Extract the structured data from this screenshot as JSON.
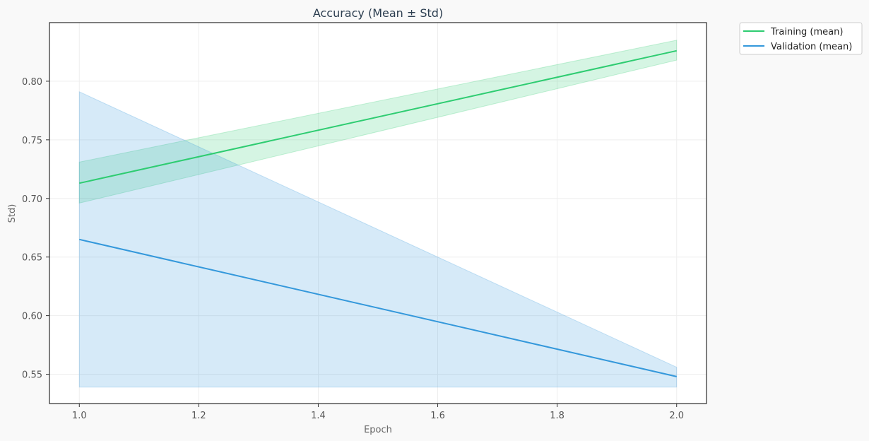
{
  "chart_data": {
    "type": "line",
    "title": "Accuracy (Mean ± Std)",
    "xlabel": "Epoch",
    "ylabel": "Std)",
    "x": [
      1.0,
      2.0
    ],
    "xlim": [
      0.95,
      2.05
    ],
    "ylim": [
      0.525,
      0.85
    ],
    "xticks": [
      1.0,
      1.2,
      1.4,
      1.6,
      1.8,
      2.0
    ],
    "xtick_labels": [
      "1.0",
      "1.2",
      "1.4",
      "1.6",
      "1.8",
      "2.0"
    ],
    "yticks": [
      0.55,
      0.6,
      0.65,
      0.7,
      0.75,
      0.8
    ],
    "ytick_labels": [
      "0.55",
      "0.60",
      "0.65",
      "0.70",
      "0.75",
      "0.80"
    ],
    "grid": true,
    "legend_position": "outside top-right",
    "series": [
      {
        "name": "Training (mean)",
        "color": "#2ecc71",
        "values": [
          0.713,
          0.826
        ],
        "lower": [
          0.696,
          0.818
        ],
        "upper": [
          0.731,
          0.835
        ]
      },
      {
        "name": "Validation (mean)",
        "color": "#3498db",
        "values": [
          0.665,
          0.548
        ],
        "lower": [
          0.539,
          0.539
        ],
        "upper": [
          0.791,
          0.556
        ]
      }
    ]
  }
}
